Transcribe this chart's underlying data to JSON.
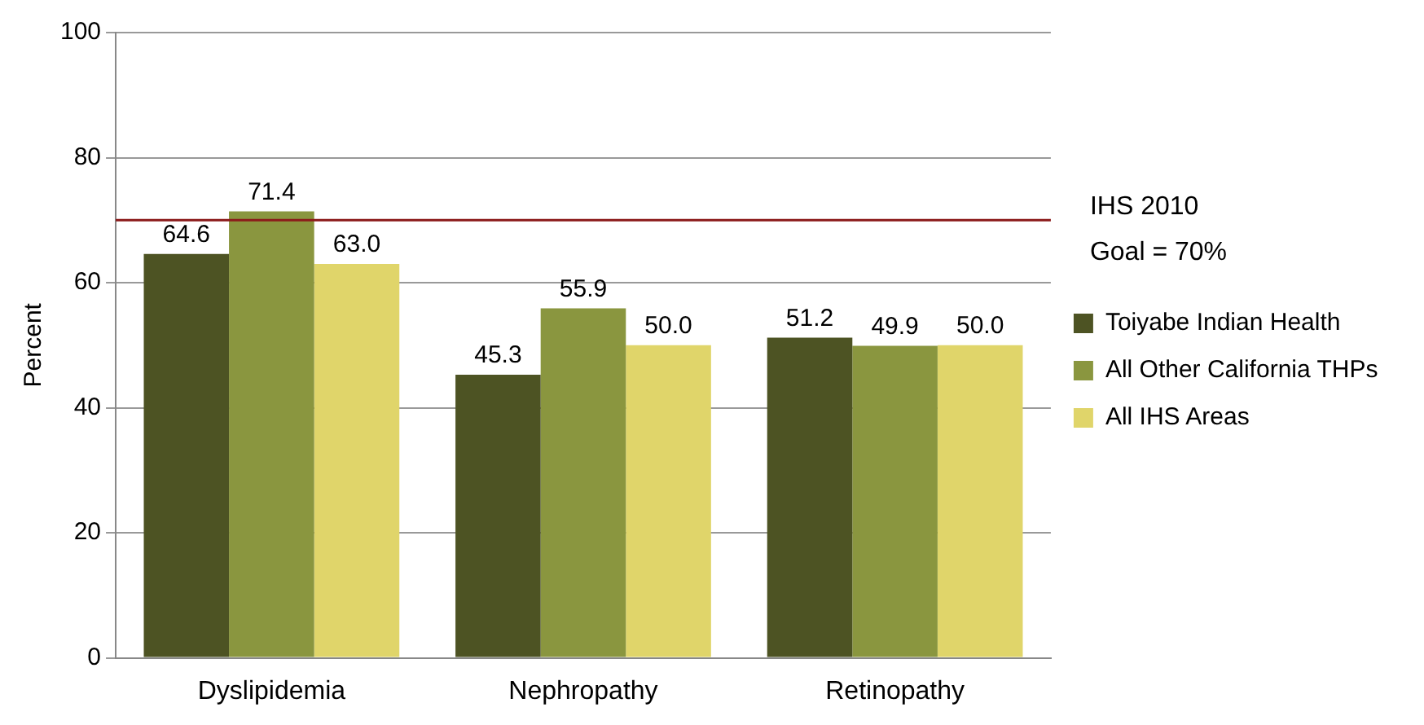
{
  "chart_data": {
    "type": "bar",
    "ylabel": "Percent",
    "categories": [
      "Dyslipidemia",
      "Nephropathy",
      "Retinopathy"
    ],
    "series": [
      {
        "name": "Toiyabe Indian Health",
        "color": "#4d5323",
        "values": [
          64.6,
          45.3,
          51.2
        ],
        "value_labels": [
          "64.6",
          "45.3",
          "51.2"
        ]
      },
      {
        "name": "All Other California THPs",
        "color": "#8a963f",
        "values": [
          71.4,
          55.9,
          49.9
        ],
        "value_labels": [
          "71.4",
          "55.9",
          "49.9"
        ]
      },
      {
        "name": "All IHS Areas",
        "color": "#e0d56a",
        "values": [
          63.0,
          50.0,
          50.0
        ],
        "value_labels": [
          "63.0",
          "50.0",
          "50.0"
        ]
      }
    ],
    "ylim": [
      0,
      100
    ],
    "yticks": [
      0,
      20,
      40,
      60,
      80,
      100
    ],
    "grid": "y",
    "legend": "right",
    "ref_lines": [
      {
        "axis": "y",
        "value": 70,
        "label": "IHS 2010\nGoal = 70%",
        "color": "#8b1a1a"
      }
    ]
  }
}
